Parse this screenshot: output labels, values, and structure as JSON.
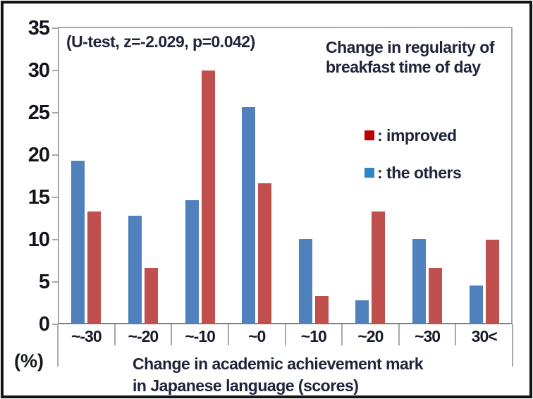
{
  "window": {
    "background": "#ffffff",
    "border_color": "#141414"
  },
  "chart_data": {
    "type": "bar",
    "annotation": "(U-test, z=-2.029, p=0.042)",
    "legend_title_line1": "Change in regularity of",
    "legend_title_line2": "breakfast time of day",
    "categories": [
      "~-30",
      "~-20",
      "~-10",
      "~0",
      "~10",
      "~20",
      "~30",
      "30<"
    ],
    "series": [
      {
        "name": "the others",
        "color": "#4F81BD",
        "position": "left",
        "values": [
          19.3,
          12.8,
          14.7,
          25.7,
          10.1,
          2.8,
          10.1,
          4.6
        ]
      },
      {
        "name": "improved",
        "color": "#C0504D",
        "position": "right",
        "values": [
          13.3,
          6.7,
          30.0,
          16.7,
          3.3,
          13.3,
          6.7,
          10.0
        ]
      }
    ],
    "ylim": [
      0,
      35
    ],
    "yticks": [
      35,
      30,
      25,
      20,
      15,
      10,
      5,
      0
    ],
    "ylabel": "(%)",
    "xlabel_line1": "Change in academic achievement mark",
    "xlabel_line2": "in Japanese language (scores)",
    "grid": false,
    "legend_position": "upper-right-inside"
  },
  "legend": {
    "items": [
      {
        "swatch_color": "#C00000",
        "label": ": improved"
      },
      {
        "swatch_color": "#2E86C8",
        "label": ": the others"
      }
    ]
  },
  "colors": {
    "axis_line": "#A8A8A8",
    "x_axis_line": "#7F7F7F",
    "bar_blue": "#4F81BD",
    "bar_red": "#C0504D",
    "text_dark": "#20243A"
  }
}
